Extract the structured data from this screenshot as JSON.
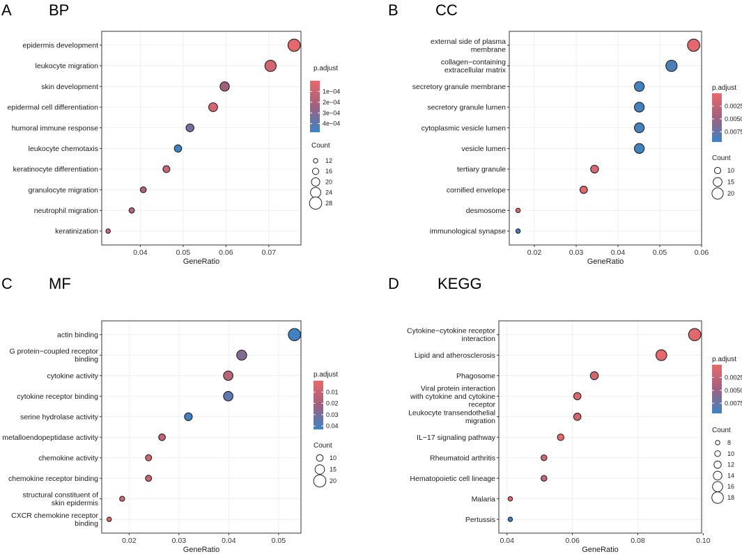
{
  "colors": {
    "low_padj": "#e8696b",
    "mid_padj": "#a0607e",
    "high_padj": "#3b84c4"
  },
  "chart_data": [
    {
      "panel": "A",
      "title": "BP",
      "type": "scatter",
      "xlabel": "GeneRatio",
      "xlim": [
        0.031,
        0.0775
      ],
      "xticks": [
        0.04,
        0.05,
        0.06,
        0.07
      ],
      "xtick_labels": [
        "0.04",
        "0.05",
        "0.06",
        "0.07"
      ],
      "terms": [
        "epidermis development",
        "leukocyte migration",
        "skin development",
        "epidermal cell differentiation",
        "humoral immune response",
        "leukocyte chemotaxis",
        "keratinocyte differentiation",
        "granulocyte migration",
        "neutrophil migration",
        "keratinization"
      ],
      "x": [
        0.0759,
        0.0704,
        0.0597,
        0.057,
        0.0516,
        0.0488,
        0.0461,
        0.0407,
        0.038,
        0.0325
      ],
      "count": [
        28,
        26,
        22,
        21,
        19,
        18,
        17,
        15,
        14,
        12
      ],
      "padj": [
        1e-05,
        8e-05,
        0.00024,
        7e-05,
        0.00034,
        0.00048,
        0.0001,
        0.00018,
        0.00015,
        4e-05
      ],
      "color_legend": {
        "title": "p.adjust",
        "range": [
          0.0,
          0.00048
        ],
        "ticks": [
          0.0001,
          0.0002,
          0.0003,
          0.0004
        ],
        "labels": [
          "1e−04",
          "2e−04",
          "3e−04",
          "4e−04"
        ]
      },
      "size_legend": {
        "title": "Count",
        "range": [
          12,
          28
        ],
        "values": [
          12,
          16,
          20,
          24,
          28
        ]
      }
    },
    {
      "panel": "B",
      "title": "CC",
      "type": "scatter",
      "xlabel": "GeneRatio",
      "xlim": [
        0.014,
        0.06
      ],
      "xticks": [
        0.02,
        0.03,
        0.04,
        0.05,
        0.06
      ],
      "xtick_labels": [
        "0.02",
        "0.03",
        "0.04",
        "0.05",
        "0.06"
      ],
      "terms": [
        "external side of plasma\nmembrane",
        "collagen−containing\nextracellular matrix",
        "secretory granule membrane",
        "secretory granule lumen",
        "cytoplasmic vesicle lumen",
        "vesicle lumen",
        "tertiary granule",
        "cornified envelope",
        "desmosome",
        "immunological synapse"
      ],
      "x": [
        0.0581,
        0.0528,
        0.0451,
        0.0451,
        0.0451,
        0.0451,
        0.0344,
        0.0318,
        0.0161,
        0.0161
      ],
      "count": [
        22,
        20,
        17,
        17,
        17,
        17,
        13,
        12,
        6,
        6
      ],
      "padj": [
        0.0004,
        0.0088,
        0.0092,
        0.0091,
        0.0091,
        0.0092,
        0.0009,
        0.0003,
        0.0002,
        0.0094
      ],
      "color_legend": {
        "title": "p.adjust",
        "range": [
          0.0,
          0.0095
        ],
        "ticks": [
          0.0025,
          0.005,
          0.0075
        ],
        "labels": [
          "0.0025",
          "0.0050",
          "0.0075"
        ]
      },
      "size_legend": {
        "title": "Count",
        "range": [
          6,
          22
        ],
        "values": [
          10,
          15,
          20
        ]
      }
    },
    {
      "panel": "C",
      "title": "MF",
      "type": "scatter",
      "xlabel": "GeneRatio",
      "xlim": [
        0.0145,
        0.0545
      ],
      "xticks": [
        0.02,
        0.03,
        0.04,
        0.05
      ],
      "xtick_labels": [
        "0.02",
        "0.03",
        "0.04",
        "0.05"
      ],
      "terms": [
        "actin binding",
        "G protein−coupled receptor\nbinding",
        "cytokine activity",
        "cytokine receptor binding",
        "serine hydrolase activity",
        "metalloendopeptidase activity",
        "chemokine activity",
        "chemokine receptor binding",
        "structural constituent of\nskin epidermis",
        "CXCR chemokine receptor\nbinding"
      ],
      "x": [
        0.0532,
        0.0426,
        0.0399,
        0.0399,
        0.0319,
        0.0266,
        0.0239,
        0.0239,
        0.0186,
        0.016
      ],
      "count": [
        20,
        16,
        15,
        15,
        12,
        10,
        9,
        9,
        7,
        6
      ],
      "padj": [
        0.042,
        0.028,
        0.014,
        0.036,
        0.041,
        0.012,
        0.006,
        0.008,
        0.004,
        0.003
      ],
      "color_legend": {
        "title": "p.adjust",
        "range": [
          0.0,
          0.043
        ],
        "ticks": [
          0.01,
          0.02,
          0.03,
          0.04
        ],
        "labels": [
          "0.01",
          "0.02",
          "0.03",
          "0.04"
        ]
      },
      "size_legend": {
        "title": "Count",
        "range": [
          6,
          20
        ],
        "values": [
          10,
          15,
          20
        ]
      }
    },
    {
      "panel": "D",
      "title": "KEGG",
      "type": "scatter",
      "xlabel": "GeneRatio",
      "xlim": [
        0.0375,
        0.0995
      ],
      "xticks": [
        0.04,
        0.06,
        0.08,
        0.1
      ],
      "xtick_labels": [
        "0.04",
        "0.06",
        "0.08",
        "0.10"
      ],
      "terms": [
        "Cytokine−cytokine receptor\ninteraction",
        "Lipid and atherosclerosis",
        "Phagosome",
        "Viral protein interaction\nwith cytokine and cytokine\nreceptor",
        "Leukocyte transendothelial\nmigration",
        "IL−17 signaling pathway",
        "Rheumatoid arthritis",
        "Hematopoietic cell lineage",
        "Malaria",
        "Pertussis"
      ],
      "x": [
        0.0974,
        0.0872,
        0.0667,
        0.0615,
        0.0615,
        0.0564,
        0.0513,
        0.0513,
        0.041,
        0.041
      ],
      "count": [
        19,
        17,
        13,
        12,
        12,
        11,
        10,
        10,
        8,
        8
      ],
      "padj": [
        0.0003,
        0.0002,
        0.0013,
        0.0007,
        0.001,
        0.0002,
        0.0016,
        0.0019,
        0.0003,
        0.0092
      ],
      "color_legend": {
        "title": "p.adjust",
        "range": [
          0.0,
          0.0095
        ],
        "ticks": [
          0.0025,
          0.005,
          0.0075
        ],
        "labels": [
          "0.0025",
          "0.0050",
          "0.0075"
        ]
      },
      "size_legend": {
        "title": "Count",
        "range": [
          8,
          19
        ],
        "values": [
          8,
          10,
          12,
          14,
          16,
          18
        ]
      }
    }
  ]
}
